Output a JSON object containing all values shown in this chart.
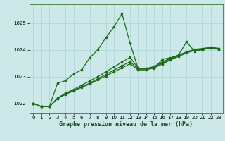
{
  "title": "Graphe pression niveau de la mer (hPa)",
  "bg_color": "#cce8e8",
  "grid_color": "#add8d8",
  "line_color": "#1a6b1a",
  "xlim": [
    -0.5,
    23.5
  ],
  "ylim": [
    1021.65,
    1025.7
  ],
  "yticks": [
    1022,
    1023,
    1024,
    1025
  ],
  "xticks": [
    0,
    1,
    2,
    3,
    4,
    5,
    6,
    7,
    8,
    9,
    10,
    11,
    12,
    13,
    14,
    15,
    16,
    17,
    18,
    19,
    20,
    21,
    22,
    23
  ],
  "line1": [
    1022.0,
    1021.88,
    1021.88,
    1022.75,
    1022.85,
    1023.1,
    1023.25,
    1023.7,
    1024.0,
    1024.45,
    1024.85,
    1025.35,
    1024.25,
    1023.3,
    1023.3,
    1023.3,
    1023.65,
    1023.7,
    1023.8,
    1024.3,
    1023.95,
    1024.0,
    1024.1,
    1024.05
  ],
  "line2": [
    1022.0,
    1021.88,
    1021.88,
    1022.2,
    1022.38,
    1022.52,
    1022.68,
    1022.84,
    1023.0,
    1023.18,
    1023.36,
    1023.54,
    1023.72,
    1023.32,
    1023.3,
    1023.38,
    1023.55,
    1023.68,
    1023.8,
    1023.92,
    1024.02,
    1024.05,
    1024.1,
    1024.05
  ],
  "line3": [
    1022.0,
    1021.88,
    1021.88,
    1022.18,
    1022.35,
    1022.48,
    1022.62,
    1022.76,
    1022.92,
    1023.08,
    1023.24,
    1023.4,
    1023.56,
    1023.28,
    1023.28,
    1023.36,
    1023.5,
    1023.65,
    1023.78,
    1023.9,
    1024.0,
    1024.03,
    1024.08,
    1024.03
  ],
  "line4": [
    1022.0,
    1021.88,
    1021.88,
    1022.18,
    1022.34,
    1022.46,
    1022.6,
    1022.72,
    1022.88,
    1023.02,
    1023.18,
    1023.32,
    1023.48,
    1023.25,
    1023.25,
    1023.33,
    1023.47,
    1023.62,
    1023.75,
    1023.88,
    1023.98,
    1024.01,
    1024.07,
    1024.02
  ]
}
